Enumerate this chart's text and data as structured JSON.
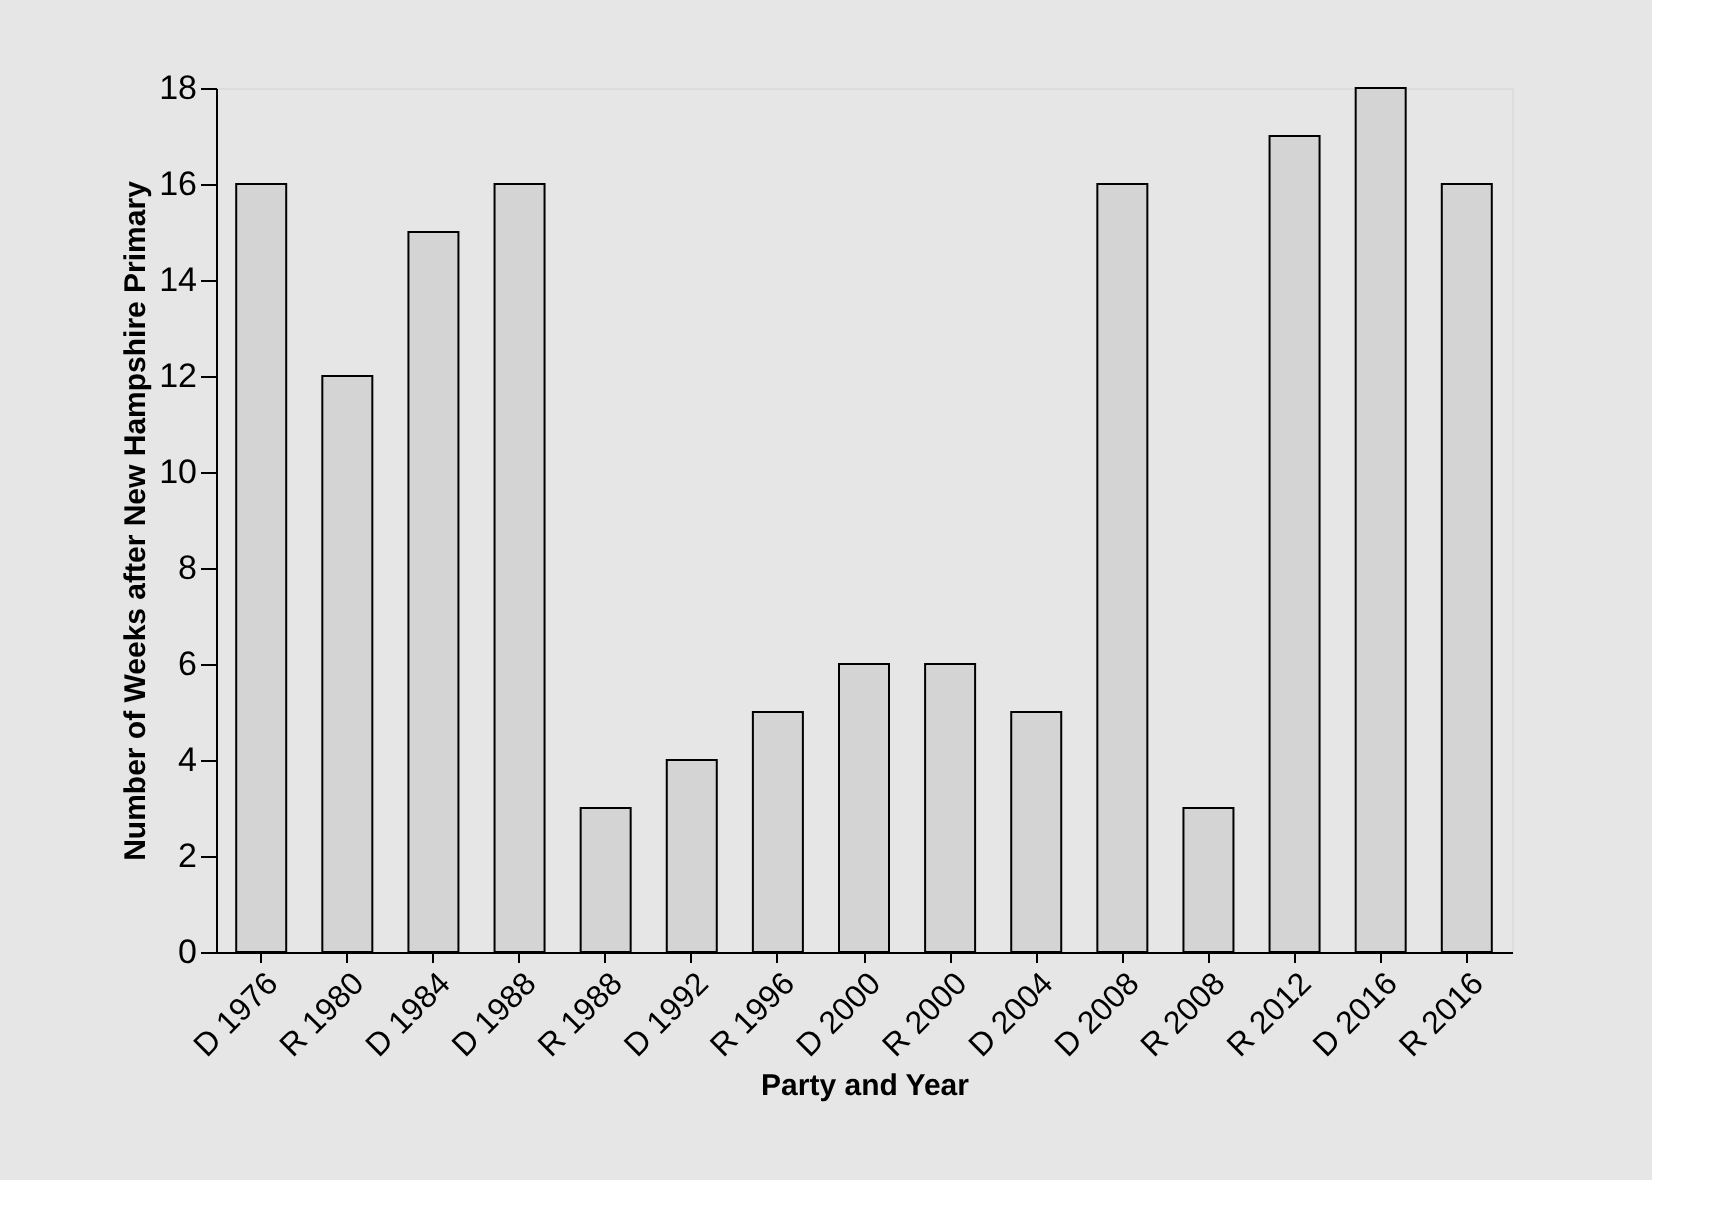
{
  "chart_data": {
    "type": "bar",
    "xlabel": "Party and Year",
    "ylabel": "Number of Weeks after New Hampshire Primary",
    "categories": [
      "D 1976",
      "R 1980",
      "D 1984",
      "D 1988",
      "R 1988",
      "D 1992",
      "R 1996",
      "D 2000",
      "R 2000",
      "D 2004",
      "D 2008",
      "R 2008",
      "R 2012",
      "D 2016",
      "R 2016"
    ],
    "values": [
      16,
      12,
      15,
      16,
      3,
      4,
      5,
      6,
      6,
      5,
      16,
      3,
      17,
      18,
      16
    ],
    "color": "#d4d4d4",
    "ylim": [
      0,
      18
    ],
    "yticks": [
      0,
      2,
      4,
      6,
      8,
      10,
      12,
      14,
      16,
      18
    ],
    "grid": false
  }
}
